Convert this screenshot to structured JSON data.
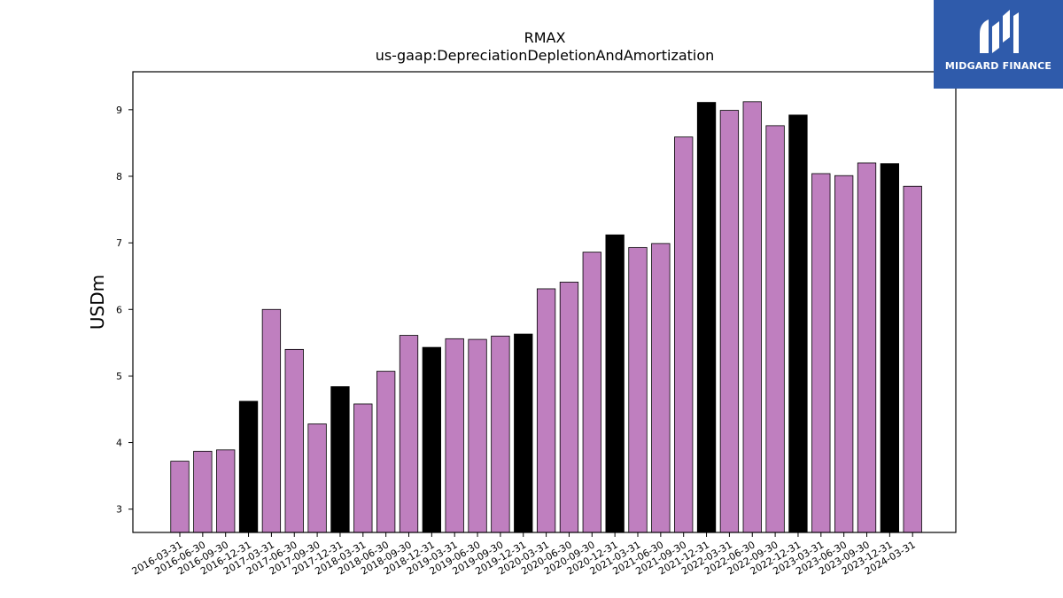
{
  "chart_data": {
    "type": "bar",
    "title": "RMAX",
    "subtitle": "us-gaap:DepreciationDepletionAndAmortization",
    "xlabel": "",
    "ylabel": "USDm",
    "ylim": [
      2.65,
      9.57
    ],
    "yticks": [
      3,
      4,
      5,
      6,
      7,
      8,
      9
    ],
    "grid": false,
    "colors": {
      "quarter": "#bf7fbf",
      "year_end": "#000000",
      "edge": "#000000"
    },
    "categories": [
      "2016-03-31",
      "2016-06-30",
      "2016-09-30",
      "2016-12-31",
      "2017-03-31",
      "2017-06-30",
      "2017-09-30",
      "2017-12-31",
      "2018-03-31",
      "2018-06-30",
      "2018-09-30",
      "2018-12-31",
      "2019-03-31",
      "2019-06-30",
      "2019-09-30",
      "2019-12-31",
      "2020-03-31",
      "2020-06-30",
      "2020-09-30",
      "2020-12-31",
      "2021-03-31",
      "2021-06-30",
      "2021-09-30",
      "2021-12-31",
      "2022-03-31",
      "2022-06-30",
      "2022-09-30",
      "2022-12-31",
      "2023-03-31",
      "2023-06-30",
      "2023-09-30",
      "2023-12-31",
      "2024-03-31"
    ],
    "values": [
      3.72,
      3.87,
      3.89,
      4.62,
      6.0,
      5.4,
      4.28,
      4.84,
      4.58,
      5.07,
      5.61,
      5.43,
      5.56,
      5.55,
      5.6,
      5.63,
      6.31,
      6.41,
      6.86,
      7.12,
      6.93,
      6.99,
      8.59,
      9.11,
      8.99,
      9.12,
      8.76,
      8.92,
      8.04,
      8.01,
      8.2,
      8.19,
      7.85
    ]
  },
  "logo": {
    "text": "MIDGARD FINANCE",
    "icon": "midgard-logo-icon",
    "background": "#2f5bab"
  }
}
